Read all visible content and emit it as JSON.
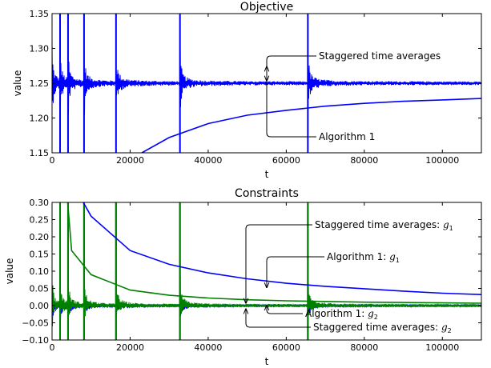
{
  "chart_data": [
    {
      "type": "line",
      "title": "Objective",
      "xlabel": "t",
      "ylabel": "value",
      "xlim": [
        0,
        110000
      ],
      "ylim": [
        1.15,
        1.35
      ],
      "xticks": [
        0,
        20000,
        40000,
        60000,
        80000,
        100000
      ],
      "yticks": [
        1.15,
        1.2,
        1.25,
        1.3,
        1.35
      ],
      "xtick_labels": [
        "0",
        "20000",
        "40000",
        "60000",
        "80000",
        "100000"
      ],
      "ytick_labels": [
        "1.15",
        "1.20",
        "1.25",
        "1.30",
        "1.35"
      ],
      "grid": false,
      "colors": {
        "series": "#0000ff",
        "axis": "#000000"
      },
      "series": [
        {
          "label": "Staggered time averages",
          "color": "#0000ff",
          "limit": 1.25,
          "restart_times": [
            0,
            2048,
            4096,
            8192,
            16384,
            32768,
            65536
          ],
          "x": [
            1000,
            5000,
            10000,
            20000,
            30000,
            40000,
            60000,
            70000,
            90000,
            110000
          ],
          "y": [
            1.25,
            1.25,
            1.25,
            1.25,
            1.25,
            1.25,
            1.25,
            1.25,
            1.25,
            1.25
          ]
        },
        {
          "label": "Algorithm 1",
          "color": "#0000ff",
          "x": [
            23000,
            30000,
            40000,
            50000,
            60000,
            70000,
            80000,
            90000,
            100000,
            110000
          ],
          "y": [
            1.15,
            1.172,
            1.192,
            1.204,
            1.211,
            1.217,
            1.221,
            1.224,
            1.226,
            1.228
          ]
        }
      ],
      "annotations": [
        {
          "text": "Staggered time averages",
          "target": [
            55000,
            1.25
          ]
        },
        {
          "text": "Algorithm 1",
          "target": [
            55000,
            1.205
          ]
        }
      ]
    },
    {
      "type": "line",
      "title": "Constraints",
      "xlabel": "t",
      "ylabel": "value",
      "xlim": [
        0,
        110000
      ],
      "ylim": [
        -0.1,
        0.3
      ],
      "xticks": [
        0,
        20000,
        40000,
        60000,
        80000,
        100000
      ],
      "yticks": [
        -0.1,
        -0.05,
        0,
        0.05,
        0.1,
        0.15,
        0.2,
        0.25,
        0.3
      ],
      "xtick_labels": [
        "0",
        "20000",
        "40000",
        "60000",
        "80000",
        "100000"
      ],
      "ytick_labels": [
        "−0.10",
        "−0.05",
        "0.00",
        "0.05",
        "0.10",
        "0.15",
        "0.20",
        "0.25",
        "0.30"
      ],
      "grid": false,
      "colors": {
        "g1": "#0000ff",
        "g2": "#008000",
        "axis": "#000000"
      },
      "series": [
        {
          "label": "Staggered time averages: g1",
          "color": "#0000ff",
          "limit": 0.0,
          "restart_times": [
            0,
            2048,
            4096,
            8192,
            16384,
            32768,
            65536
          ]
        },
        {
          "label": "Algorithm 1: g1",
          "color": "#0000ff",
          "x": [
            8000,
            10000,
            20000,
            30000,
            40000,
            50000,
            60000,
            70000,
            80000,
            90000,
            100000,
            110000
          ],
          "y": [
            0.3,
            0.26,
            0.16,
            0.12,
            0.095,
            0.078,
            0.065,
            0.056,
            0.049,
            0.042,
            0.036,
            0.032
          ]
        },
        {
          "label": "Algorithm 1: g2",
          "color": "#008000",
          "x": [
            4000,
            5000,
            10000,
            20000,
            30000,
            40000,
            50000,
            60000,
            70000,
            80000,
            90000,
            100000,
            110000
          ],
          "y": [
            0.3,
            0.16,
            0.09,
            0.045,
            0.03,
            0.022,
            0.017,
            0.014,
            0.012,
            0.01,
            0.009,
            0.008,
            0.007
          ]
        },
        {
          "label": "Staggered time averages: g2",
          "color": "#008000",
          "limit": 0.0,
          "restart_times": [
            0,
            2048,
            4096,
            8192,
            16384,
            32768,
            65536
          ]
        }
      ],
      "annotations": [
        {
          "text": "Staggered time averages: ",
          "sub": "1",
          "target": [
            49000,
            0.0
          ]
        },
        {
          "text": "Algorithm 1: ",
          "sub": "1",
          "target": [
            55000,
            0.05
          ]
        },
        {
          "text": "Algorithm 1: ",
          "sub": "2",
          "target": [
            55000,
            0.005
          ]
        },
        {
          "text": "Staggered time averages: ",
          "sub": "2",
          "target": [
            49000,
            -0.005
          ]
        }
      ]
    }
  ]
}
